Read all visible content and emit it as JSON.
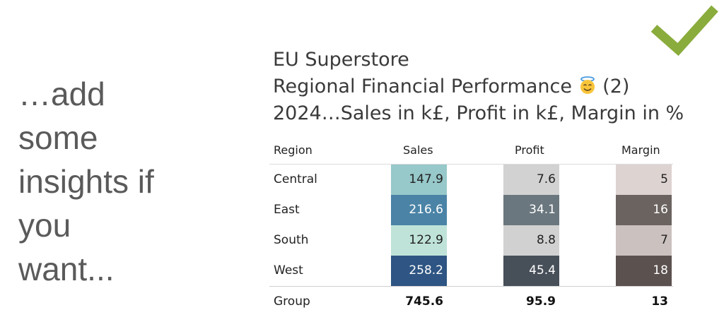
{
  "side_note": [
    "…add",
    "some",
    "insights if",
    "you",
    "want..."
  ],
  "icons": {
    "check": "checkmark-icon",
    "emoji": "smiling-face-with-halo"
  },
  "colors": {
    "check": "#8aac3c"
  },
  "titles": {
    "line1": "EU Superstore",
    "line2": "Regional Financial Performance",
    "line2_suffix": "(2)",
    "line3": "2024…Sales in k£, Profit in k£, Margin in %"
  },
  "chart_data": {
    "type": "table",
    "columns": [
      "Region",
      "Sales",
      "Profit",
      "Margin"
    ],
    "rows": [
      {
        "region": "Central",
        "sales": "147.9",
        "profit": "7.6",
        "margin": "5",
        "colors": {
          "sales": "#97c8ca",
          "profit": "#d2d2d2",
          "margin": "#ddd3d1"
        }
      },
      {
        "region": "East",
        "sales": "216.6",
        "profit": "34.1",
        "margin": "16",
        "colors": {
          "sales": "#4a83a6",
          "profit": "#6a777e",
          "margin": "#6b6360"
        }
      },
      {
        "region": "South",
        "sales": "122.9",
        "profit": "8.8",
        "margin": "7",
        "colors": {
          "sales": "#bfe3d8",
          "profit": "#d1d1d1",
          "margin": "#cbc1bf"
        }
      },
      {
        "region": "West",
        "sales": "258.2",
        "profit": "45.4",
        "margin": "18",
        "colors": {
          "sales": "#2e5583",
          "profit": "#474f59",
          "margin": "#5b514f"
        }
      }
    ],
    "total": {
      "region": "Group",
      "sales": "745.6",
      "profit": "95.9",
      "margin": "13"
    }
  }
}
